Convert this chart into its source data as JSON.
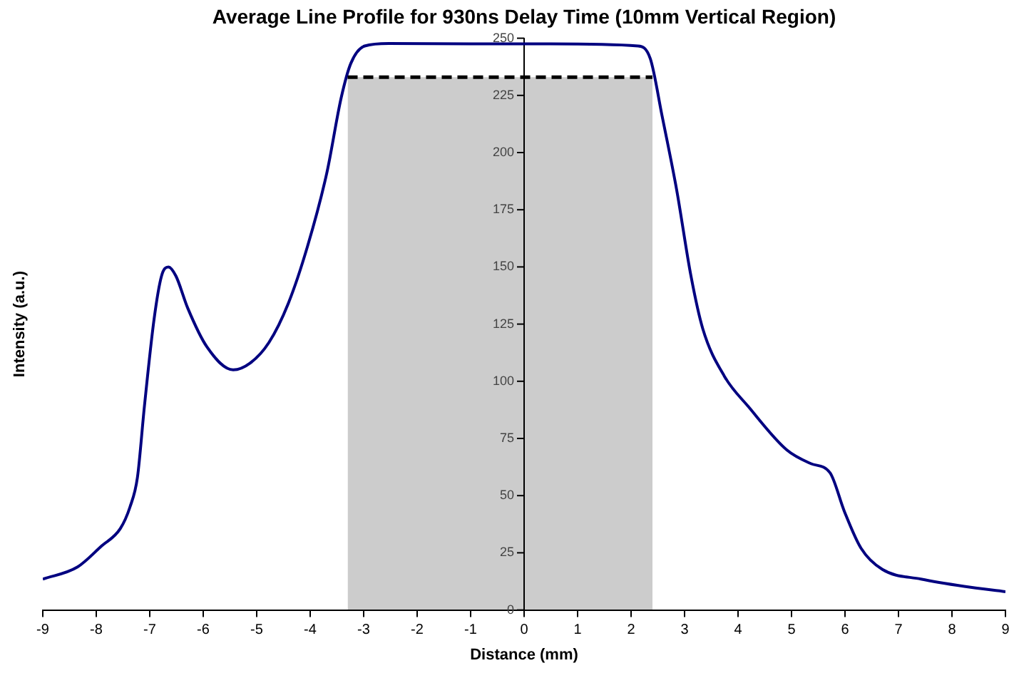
{
  "chart_data": {
    "type": "line",
    "title": "Average Line Profile for 930ns Delay Time (10mm Vertical Region)",
    "xlabel": "Distance (mm)",
    "ylabel": "Intensity (a.u.)",
    "xlim": [
      -9,
      9
    ],
    "xticks": [
      -9,
      -8,
      -7,
      -6,
      -5,
      -4,
      -3,
      -2,
      -1,
      0,
      1,
      2,
      3,
      4,
      5,
      6,
      7,
      8,
      9
    ],
    "ylim": [
      0,
      250
    ],
    "yticks": [
      0,
      25,
      50,
      75,
      100,
      125,
      150,
      175,
      200,
      225,
      250
    ],
    "grid": false,
    "legend": false,
    "marker": "none",
    "series": [
      {
        "type": "area",
        "color": "#000000",
        "line_style": "dashed",
        "x": [
          -3.3,
          2.4
        ],
        "values": [
          233,
          233
        ]
      },
      {
        "type": "line",
        "color": "#000080",
        "line_style": "solid",
        "x": [
          -9,
          -8.35,
          -7.9,
          -7.55,
          -7.37,
          -7.23,
          -7.1,
          -6.92,
          -6.78,
          -6.65,
          -6.51,
          -6.29,
          -5.93,
          -5.44,
          -5.12,
          -4.77,
          -4.41,
          -4.05,
          -3.69,
          -3.42,
          -3.24,
          -2.98,
          -2.53,
          -1,
          0.5,
          2.13,
          2.36,
          2.58,
          2.85,
          3.12,
          3.34,
          3.75,
          4.19,
          4.91,
          5.36,
          5.72,
          5.99,
          6.3,
          6.7,
          7.42,
          8.23,
          9
        ],
        "values": [
          13.5,
          18.8,
          28,
          35.6,
          45,
          58,
          89,
          127,
          146,
          150,
          146,
          132,
          115,
          105,
          108,
          117,
          134,
          159,
          191,
          224,
          239,
          246.6,
          247.7,
          247.5,
          247.5,
          246.6,
          241,
          216,
          184,
          146,
          123,
          102,
          89,
          70,
          64,
          60,
          43,
          27,
          17.7,
          13.5,
          10.3,
          8
        ]
      }
    ]
  }
}
